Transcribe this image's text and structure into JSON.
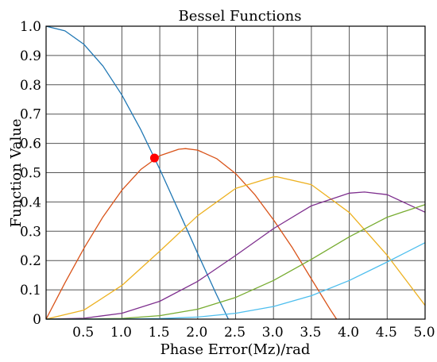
{
  "chart_data": {
    "type": "line",
    "title": "Bessel Functions",
    "xlabel": "Phase Error(Mz)/rad",
    "ylabel": "Function Value",
    "xlim": [
      0,
      5.0
    ],
    "ylim": [
      0,
      1.0
    ],
    "x_ticks": [
      "0.5",
      "1.0",
      "1.5",
      "2.0",
      "2.5",
      "3.0",
      "3.5",
      "4.0",
      "4.5",
      "5.0"
    ],
    "y_ticks": [
      "0",
      "0.1",
      "0.2",
      "0.3",
      "0.4",
      "0.5",
      "0.6",
      "0.7",
      "0.8",
      "0.9",
      "1.0"
    ],
    "grid": true,
    "series": [
      {
        "color": "#1f77b4",
        "x": [
          0,
          0.25,
          0.5,
          0.75,
          1.0,
          1.25,
          1.5,
          1.75,
          2.0,
          2.25,
          2.405
        ],
        "values": [
          1.0,
          0.984,
          0.938,
          0.864,
          0.765,
          0.646,
          0.512,
          0.369,
          0.224,
          0.083,
          0.0
        ]
      },
      {
        "color": "#d95319",
        "x": [
          0,
          0.25,
          0.5,
          0.75,
          1.0,
          1.25,
          1.5,
          1.75,
          1.84,
          2.0,
          2.25,
          2.5,
          2.75,
          3.0,
          3.25,
          3.5,
          3.75,
          3.832
        ],
        "values": [
          0.0,
          0.124,
          0.242,
          0.349,
          0.44,
          0.511,
          0.558,
          0.58,
          0.582,
          0.577,
          0.548,
          0.497,
          0.426,
          0.339,
          0.243,
          0.137,
          0.032,
          0.0
        ]
      },
      {
        "color": "#edb120",
        "x": [
          0,
          0.5,
          1.0,
          1.5,
          2.0,
          2.5,
          3.0,
          3.05,
          3.5,
          4.0,
          4.5,
          5.0
        ],
        "values": [
          0.0,
          0.031,
          0.115,
          0.232,
          0.353,
          0.446,
          0.486,
          0.486,
          0.459,
          0.364,
          0.218,
          0.047
        ]
      },
      {
        "color": "#7e2f8e",
        "x": [
          0,
          0.5,
          1.0,
          1.5,
          2.0,
          2.5,
          3.0,
          3.5,
          4.0,
          4.2,
          4.5,
          5.0
        ],
        "values": [
          0.0,
          0.003,
          0.02,
          0.061,
          0.129,
          0.217,
          0.309,
          0.387,
          0.43,
          0.434,
          0.425,
          0.365
        ]
      },
      {
        "color": "#77ac30",
        "x": [
          0,
          0.5,
          1.0,
          1.5,
          2.0,
          2.5,
          3.0,
          3.5,
          4.0,
          4.5,
          5.0
        ],
        "values": [
          0.0,
          0.0002,
          0.0025,
          0.012,
          0.034,
          0.074,
          0.132,
          0.204,
          0.281,
          0.348,
          0.391
        ]
      },
      {
        "color": "#4dbeee",
        "x": [
          0,
          0.5,
          1.0,
          1.5,
          2.0,
          2.5,
          3.0,
          3.5,
          4.0,
          4.5,
          5.0
        ],
        "values": [
          0.0,
          0.0,
          0.0003,
          0.0018,
          0.007,
          0.02,
          0.043,
          0.08,
          0.132,
          0.195,
          0.261
        ]
      }
    ],
    "marker": {
      "x": 1.43,
      "y": 0.55,
      "color": "#ff0000"
    }
  }
}
